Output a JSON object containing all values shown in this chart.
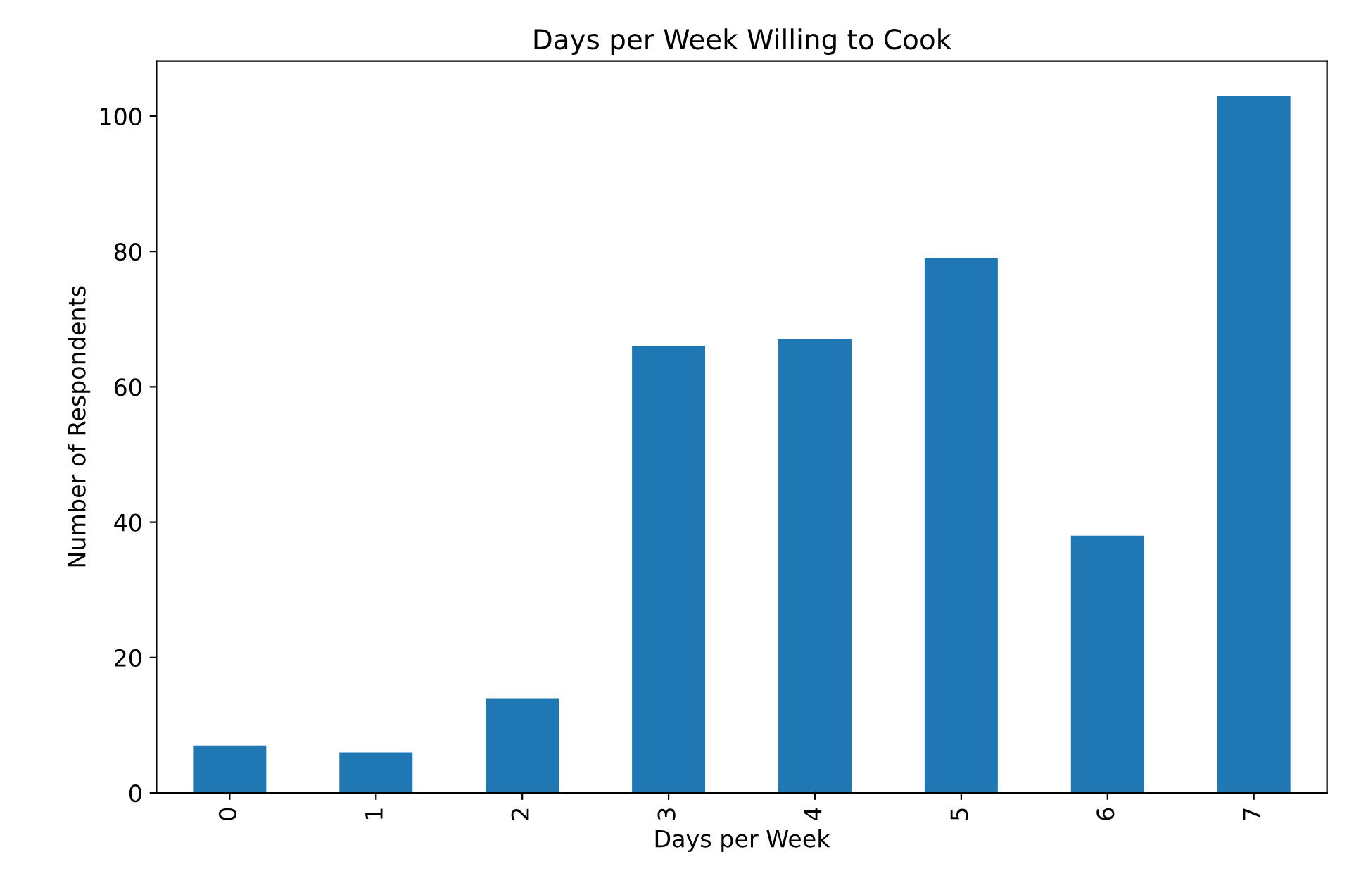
{
  "chart_data": {
    "type": "bar",
    "title": "Days per Week Willing to Cook",
    "xlabel": "Days per Week",
    "ylabel": "Number of Respondents",
    "categories": [
      "0",
      "1",
      "2",
      "3",
      "4",
      "5",
      "6",
      "7"
    ],
    "values": [
      7,
      6,
      14,
      66,
      67,
      79,
      38,
      103
    ],
    "color": "#1f77b4",
    "ylim": [
      0,
      108.15
    ],
    "yticks": [
      0,
      20,
      40,
      60,
      80,
      100
    ],
    "grid": false
  }
}
